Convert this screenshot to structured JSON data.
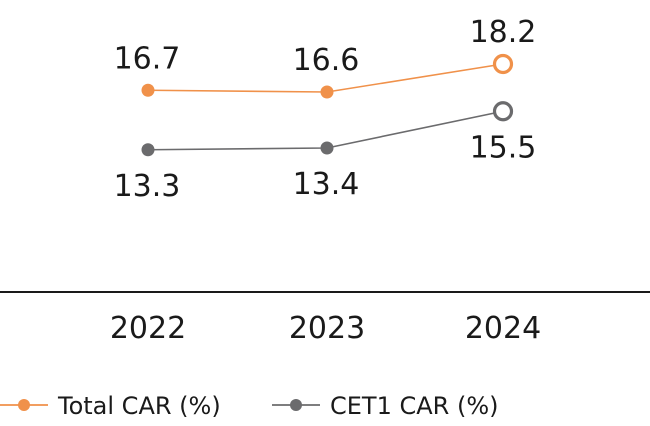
{
  "chart_data": {
    "type": "line",
    "categories": [
      "2022",
      "2023",
      "2024"
    ],
    "series": [
      {
        "name": "Total CAR (%)",
        "values": [
          16.7,
          16.6,
          18.2
        ],
        "value_labels": [
          "16.7",
          "16.6",
          "18.2"
        ],
        "color": "#f0914a",
        "last_point_hollow": true
      },
      {
        "name": "CET1 CAR (%)",
        "values": [
          13.3,
          13.4,
          15.5
        ],
        "value_labels": [
          "13.3",
          "13.4",
          "15.5"
        ],
        "color": "#6b6b6d",
        "last_point_hollow": true
      }
    ],
    "title": "",
    "xlabel": "",
    "ylabel": "",
    "ylim": [
      12,
      19
    ],
    "grid": false,
    "legend": "bottom-left"
  }
}
